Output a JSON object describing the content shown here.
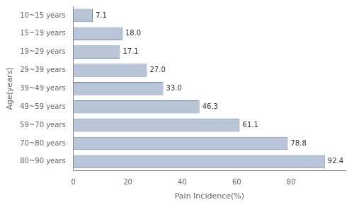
{
  "chart_data": {
    "type": "bar",
    "orientation": "horizontal",
    "xlabel": "Pain Incidence(%)",
    "ylabel": "Age(years)",
    "categories": [
      "10~15 years",
      "15~19 years",
      "19~29 years",
      "29~39 years",
      "39~49 years",
      "49~59 years",
      "59~70 years",
      "70~80 years",
      "80~90 years"
    ],
    "values": [
      7.1,
      18.0,
      17.1,
      27.0,
      33.0,
      46.3,
      61.1,
      78.8,
      92.4
    ],
    "value_labels": [
      "7.1",
      "18.0",
      "17.1",
      "27.0",
      "33.0",
      "46.3",
      "61.1",
      "78.8",
      "92.4"
    ],
    "color": "#b8c4d8",
    "xlim": [
      0,
      100
    ],
    "xticks": [
      0,
      20,
      40,
      60,
      80
    ],
    "grid": false,
    "data_labels": true
  }
}
